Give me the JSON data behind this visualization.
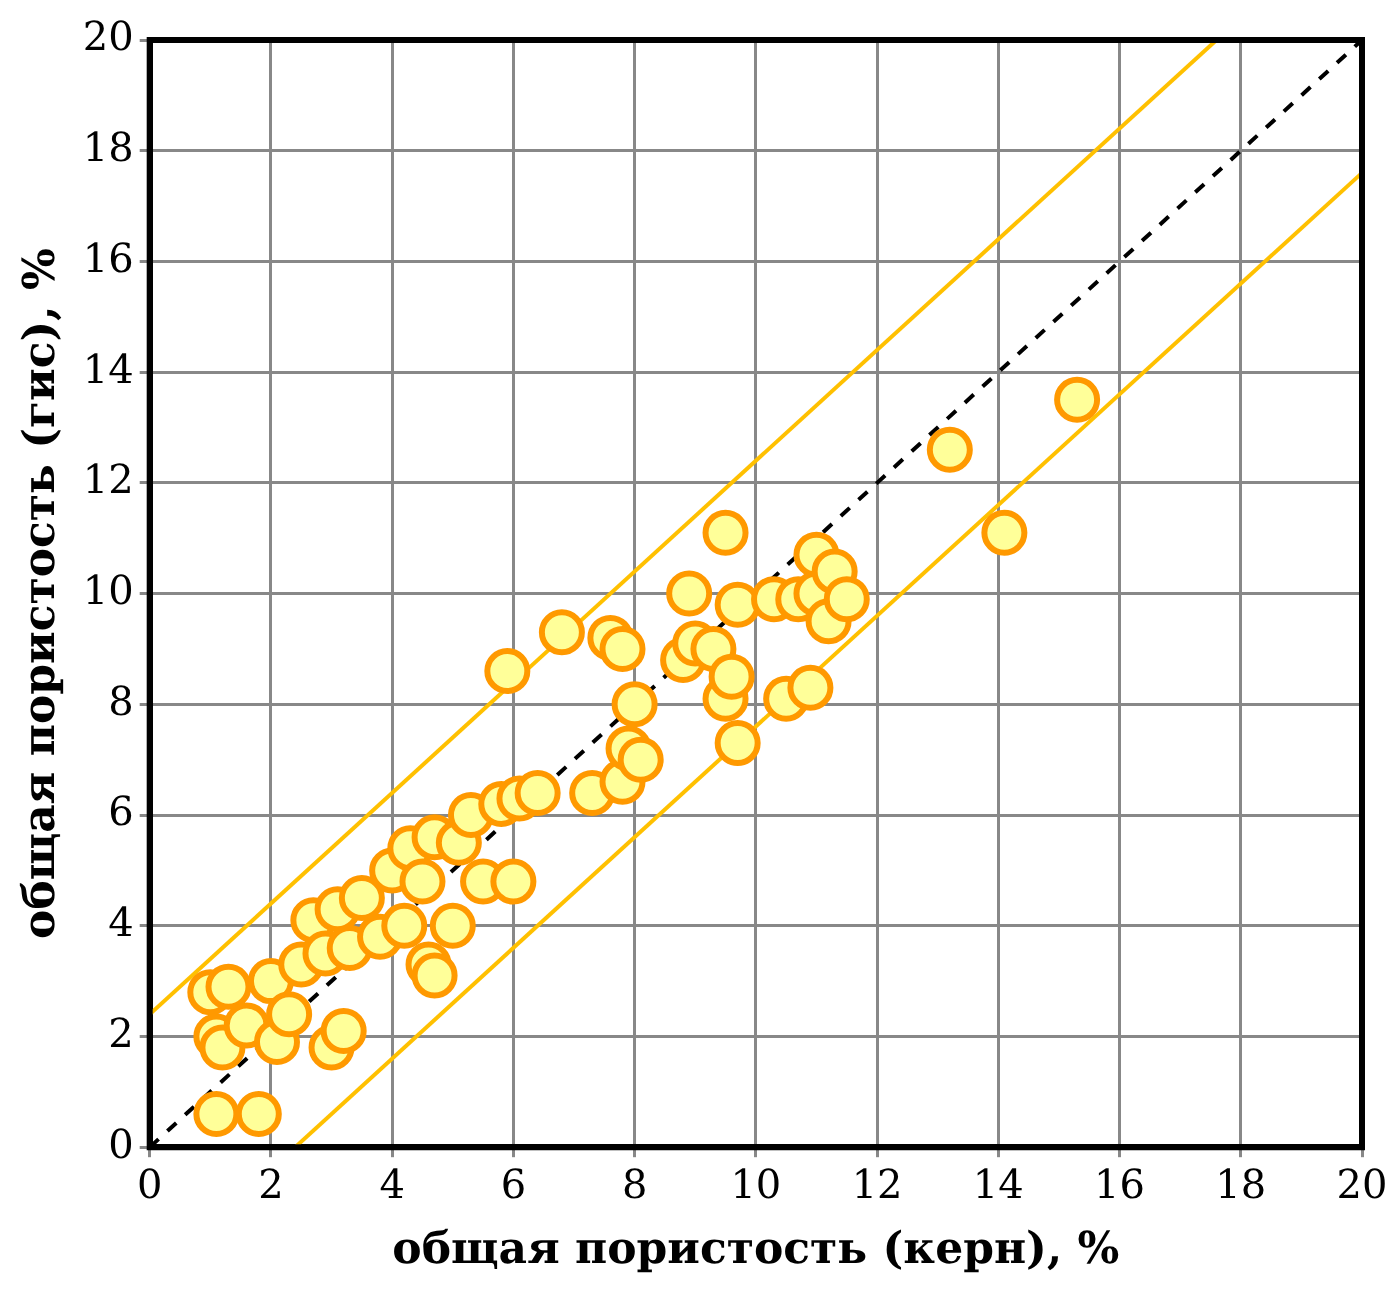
{
  "chart_data": {
    "type": "scatter",
    "xlabel": "общая пористость (керн), %",
    "ylabel": "общая пористость (гис), %",
    "xlim": [
      0,
      20
    ],
    "ylim": [
      0,
      20
    ],
    "xticks": [
      0,
      2,
      4,
      6,
      8,
      10,
      12,
      14,
      16,
      18,
      20
    ],
    "yticks": [
      0,
      2,
      4,
      6,
      8,
      10,
      12,
      14,
      16,
      18,
      20
    ],
    "grid": true,
    "legend": false,
    "marker": "circle",
    "series": [
      {
        "color": "#ff9900",
        "x": [
          1.0,
          1.1,
          1.2,
          1.3,
          1.1,
          1.8,
          1.6,
          2.0,
          2.1,
          2.3,
          2.5,
          2.7,
          2.9,
          3.0,
          3.2,
          3.1,
          3.3,
          3.5,
          3.8,
          4.0,
          4.2,
          4.3,
          4.5,
          4.6,
          4.7,
          4.7,
          5.0,
          5.1,
          5.3,
          5.5,
          5.8,
          6.0,
          6.1,
          6.4,
          5.9,
          6.8,
          7.3,
          7.6,
          7.8,
          7.8,
          7.9,
          8.0,
          8.1,
          8.8,
          8.9,
          9.0,
          9.3,
          9.5,
          9.5,
          9.6,
          9.7,
          9.7,
          10.3,
          10.5,
          10.7,
          10.9,
          11.0,
          11.0,
          11.2,
          11.3,
          11.5,
          13.2,
          14.1,
          15.3
        ],
        "values": [
          2.8,
          2.0,
          1.8,
          2.9,
          0.6,
          0.6,
          2.2,
          3.0,
          1.9,
          2.4,
          3.3,
          4.1,
          3.5,
          1.8,
          2.1,
          4.3,
          3.6,
          4.5,
          3.8,
          5.0,
          4.0,
          5.4,
          4.8,
          3.3,
          3.1,
          5.6,
          4.0,
          5.5,
          6.0,
          4.8,
          6.2,
          4.8,
          6.3,
          6.4,
          8.6,
          9.3,
          6.4,
          9.2,
          6.6,
          9.0,
          7.2,
          8.0,
          7.0,
          8.8,
          10.0,
          9.1,
          9.0,
          11.1,
          8.1,
          8.5,
          7.3,
          9.8,
          9.9,
          8.1,
          9.9,
          8.3,
          10.7,
          10.0,
          9.5,
          10.4,
          9.9,
          12.6,
          11.1,
          13.5
        ]
      },
      {
        "type": "line",
        "color": "#000000",
        "line_style": "dashed",
        "marker": "none",
        "x": [
          0,
          20
        ],
        "values": [
          0,
          20
        ]
      },
      {
        "type": "line",
        "color": "#ffc000",
        "line_style": "solid",
        "marker": "none",
        "x": [
          0,
          17.6
        ],
        "values": [
          2.4,
          20
        ]
      },
      {
        "type": "line",
        "color": "#ffc000",
        "line_style": "solid",
        "marker": "none",
        "x": [
          2.4,
          20
        ],
        "values": [
          0,
          17.6
        ]
      }
    ]
  }
}
